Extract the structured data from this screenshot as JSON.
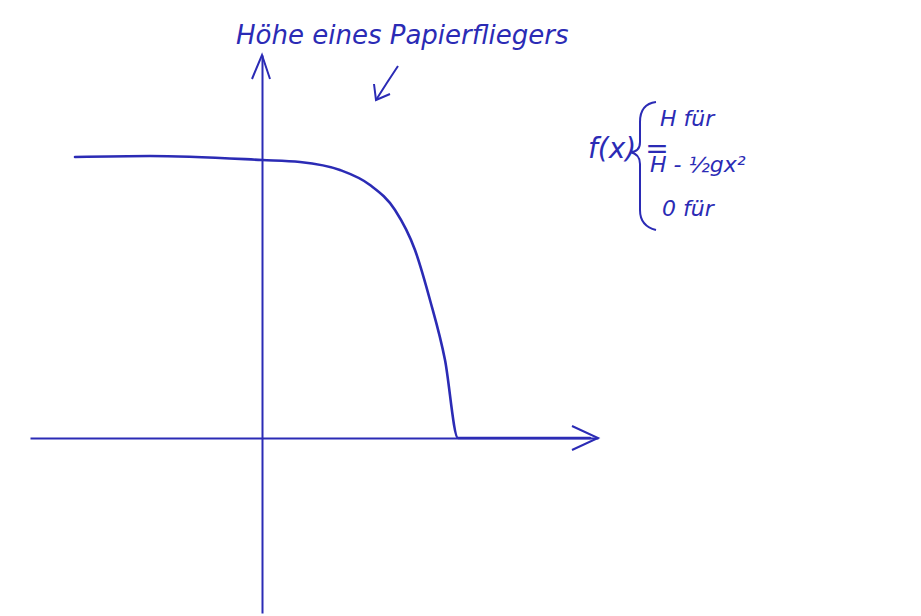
{
  "chart_data": {
    "type": "line",
    "annotations": [
      {
        "text": "Höhe eines Papierfliegers"
      },
      {
        "text": "f(x) ="
      },
      {
        "text": "H für"
      },
      {
        "text": "H - ½gx²"
      },
      {
        "text": "0 für"
      }
    ],
    "x": [
      -1.87,
      -1.12,
      0,
      0.38,
      0.78,
      1.08,
      1.33,
      1.53,
      1.68,
      1.83,
      1.96,
      2.58,
      3.28
    ],
    "series": [
      {
        "color": "#2b2bb5",
        "values": [
          2.81,
          2.82,
          2.78,
          2.76,
          2.68,
          2.53,
          2.28,
          1.88,
          1.38,
          0.78,
          0,
          0,
          0
        ]
      }
    ],
    "xlim": [
      -2.32,
      3.36
    ],
    "ylim": [
      -1.75,
      3.83
    ],
    "tick_labels": false
  }
}
